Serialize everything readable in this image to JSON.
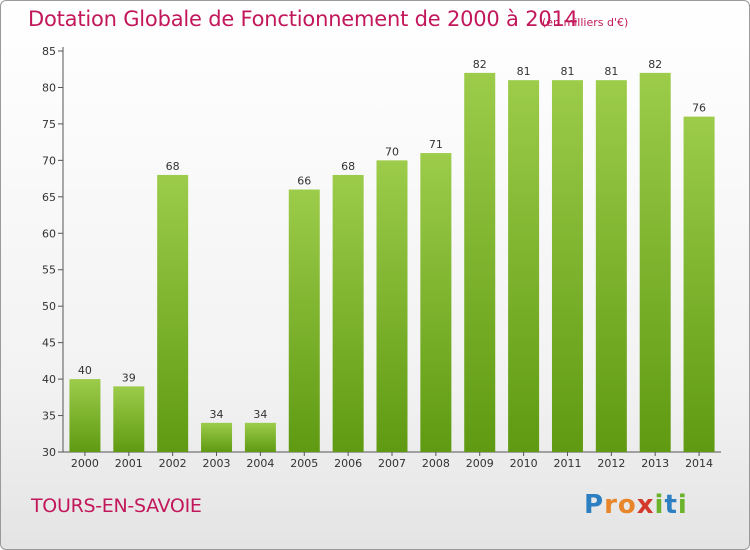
{
  "header": {
    "title": "Dotation Globale de Fonctionnement de 2000 à 2014",
    "unit": "(en milliers d'€)"
  },
  "footer": {
    "commune": "TOURS-EN-SAVOIE",
    "logo": {
      "letters": [
        "P",
        "r",
        "o",
        "x",
        "i",
        "t",
        "i"
      ],
      "colors": [
        "#2e7fc1",
        "#e8842a",
        "#e8842a",
        "#d33a2c",
        "#6ab32a",
        "#2e7fc1",
        "#6ab32a"
      ]
    }
  },
  "chart_data": {
    "type": "bar",
    "title": "Dotation Globale de Fonctionnement de 2000 à 2014",
    "subtitle": "(en milliers d'€)",
    "categories": [
      "2000",
      "2001",
      "2002",
      "2003",
      "2004",
      "2005",
      "2006",
      "2007",
      "2008",
      "2009",
      "2010",
      "2011",
      "2012",
      "2013",
      "2014"
    ],
    "values": [
      40,
      39,
      68,
      34,
      34,
      66,
      68,
      70,
      71,
      82,
      81,
      81,
      81,
      82,
      76
    ],
    "ylim": [
      30,
      85
    ],
    "yticks": [
      30,
      35,
      40,
      45,
      50,
      55,
      60,
      65,
      70,
      75,
      80,
      85
    ],
    "grid": false,
    "bar_color_top": "#9ccc4a",
    "bar_color_bottom": "#5f9a12",
    "axis_color": "#555555",
    "label_color": "#333333"
  }
}
